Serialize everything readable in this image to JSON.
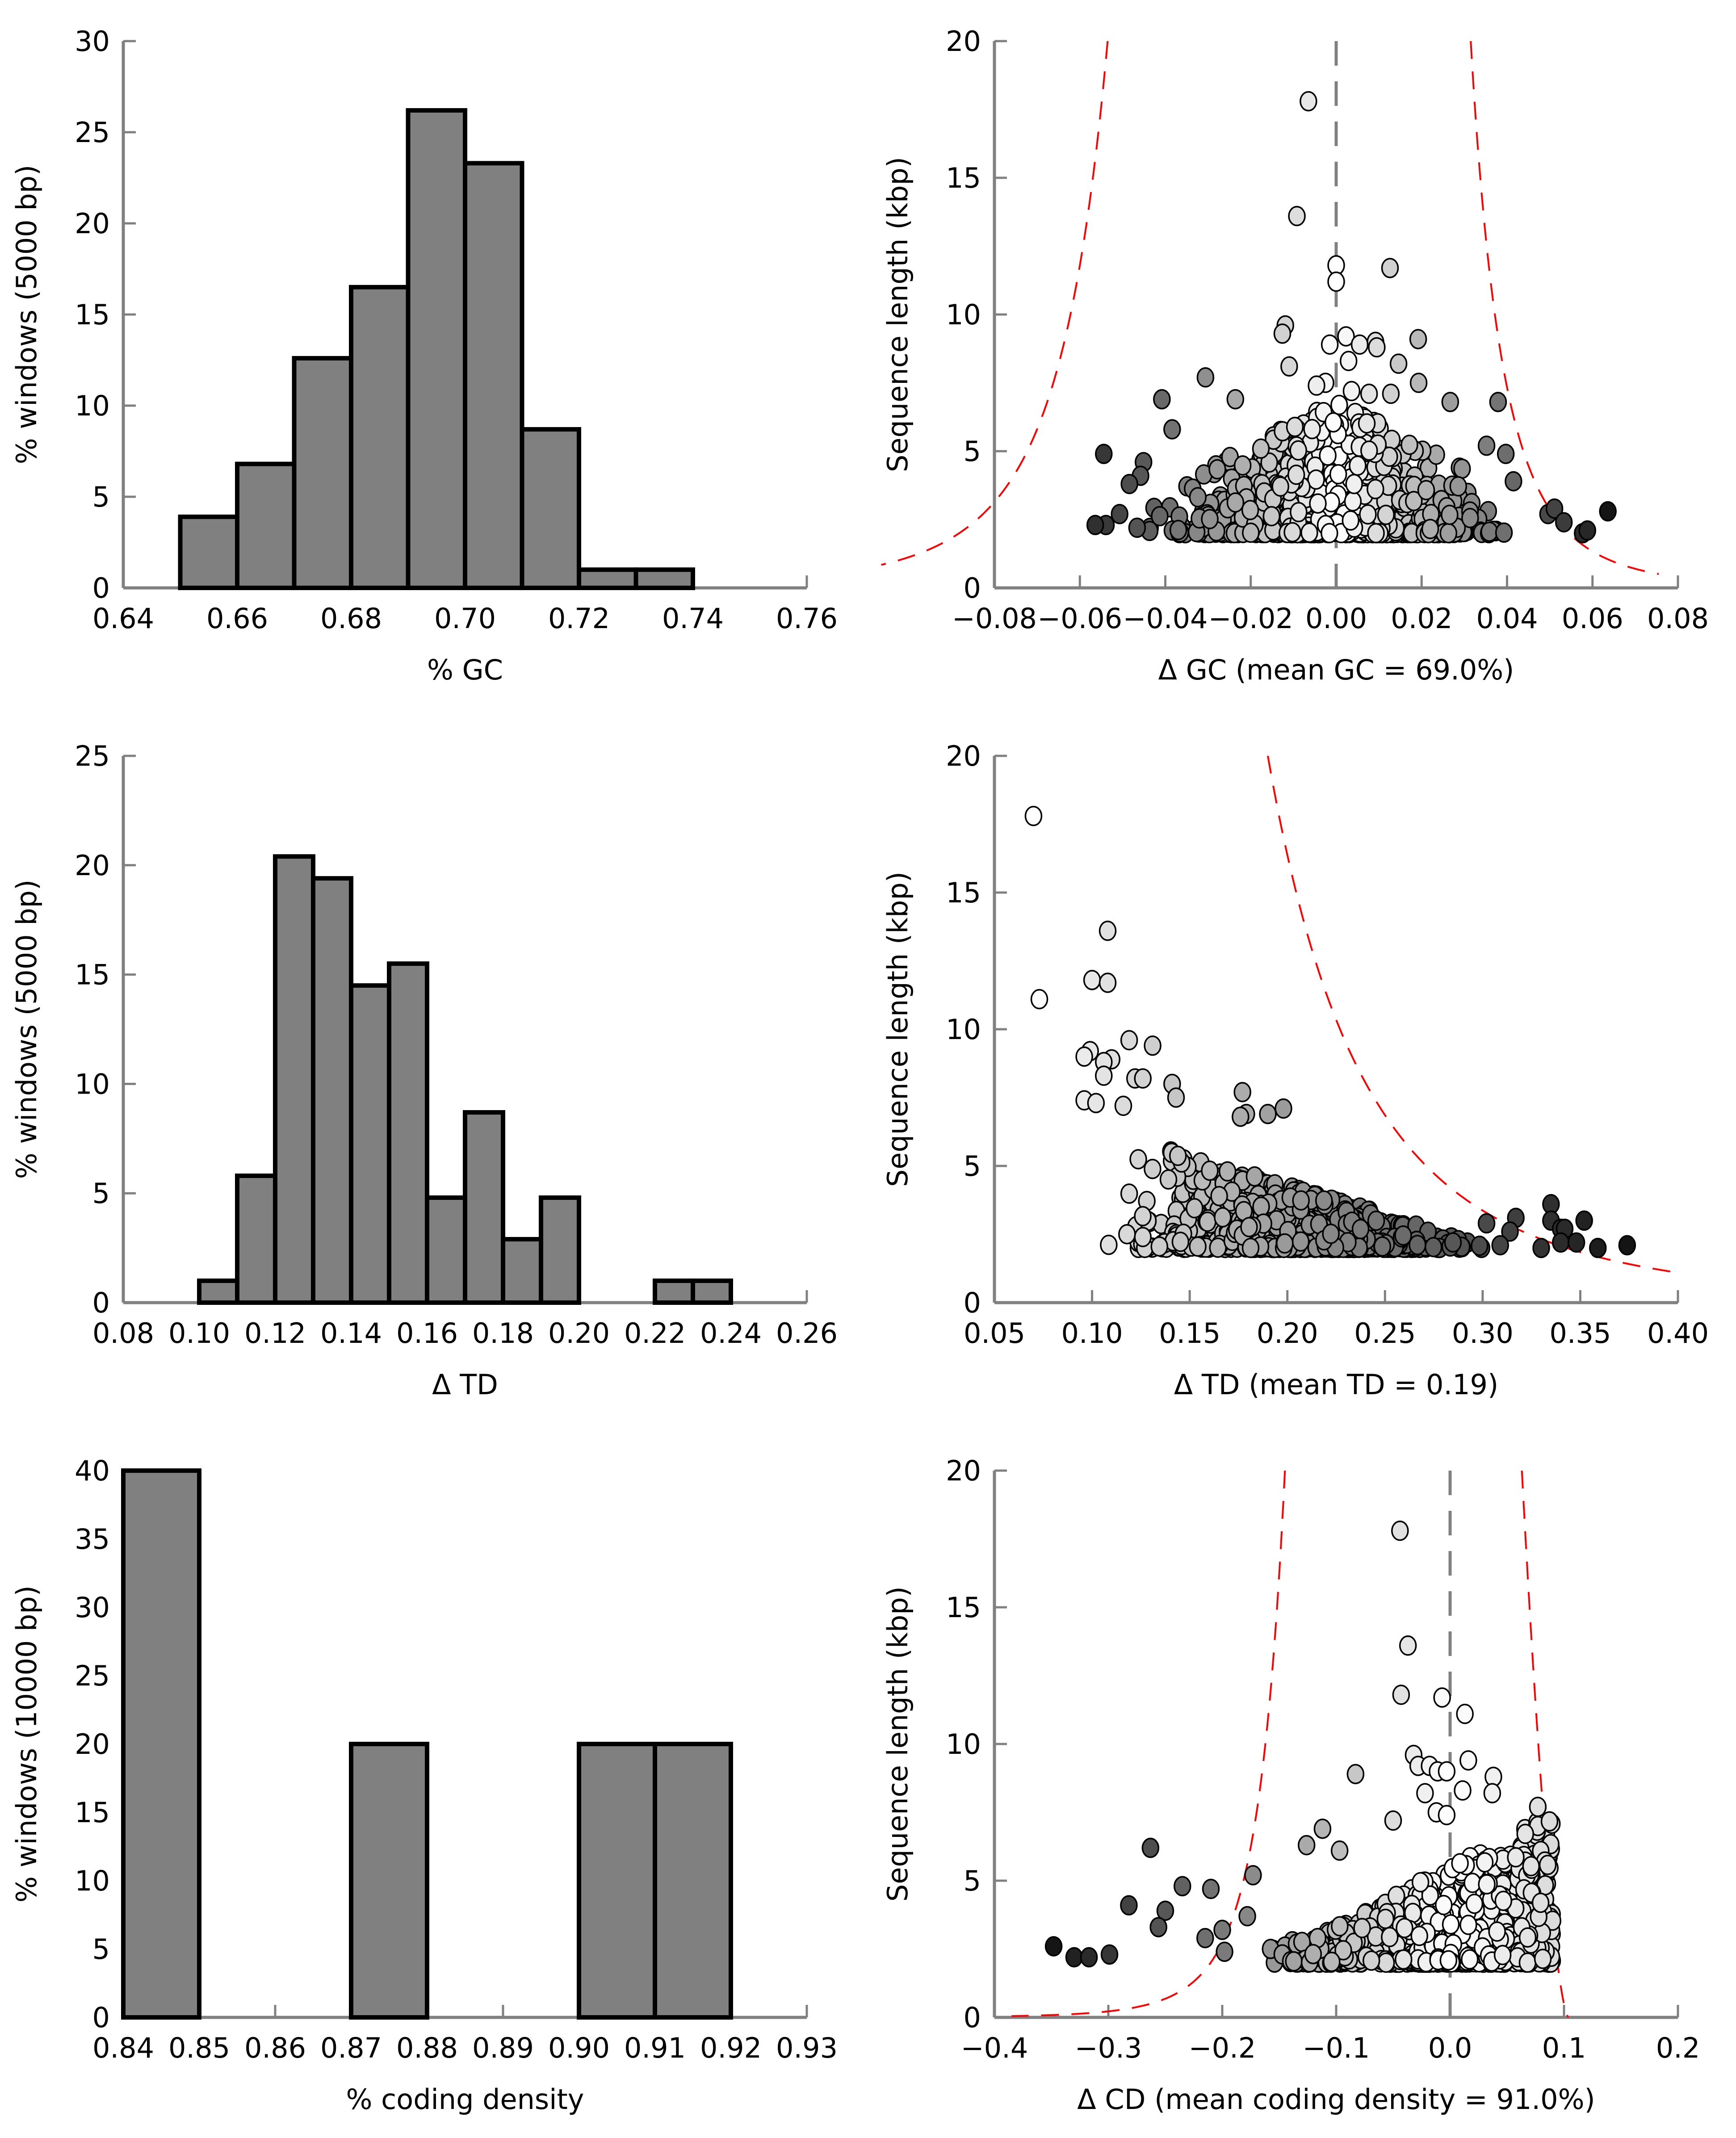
{
  "chart_data": [
    {
      "id": "gc-hist",
      "type": "bar",
      "xlabel": "% GC",
      "ylabel": "% windows (5000 bp)",
      "xlim": [
        0.64,
        0.76
      ],
      "ylim": [
        0,
        30
      ],
      "xticks": [
        "0.64",
        "0.66",
        "0.68",
        "0.70",
        "0.72",
        "0.74",
        "0.76"
      ],
      "yticks": [
        "0",
        "5",
        "10",
        "15",
        "20",
        "25",
        "30"
      ],
      "bin_width": 0.01,
      "bins": [
        {
          "start": 0.65,
          "value": 3.9
        },
        {
          "start": 0.66,
          "value": 6.8
        },
        {
          "start": 0.67,
          "value": 12.6
        },
        {
          "start": 0.68,
          "value": 16.5
        },
        {
          "start": 0.69,
          "value": 26.2
        },
        {
          "start": 0.7,
          "value": 23.3
        },
        {
          "start": 0.71,
          "value": 8.7
        },
        {
          "start": 0.72,
          "value": 1.0
        },
        {
          "start": 0.73,
          "value": 1.0
        }
      ],
      "bar_color": "#808080"
    },
    {
      "id": "gc-scatter",
      "type": "scatter",
      "xlabel": "Δ GC (mean GC = 69.0%)",
      "ylabel": "Sequence length (kbp)",
      "xlim": [
        -0.08,
        0.08
      ],
      "ylim": [
        0,
        20
      ],
      "xticks": [
        "−0.08",
        "−0.06",
        "−0.04",
        "−0.02",
        "0.00",
        "0.02",
        "0.04",
        "0.06",
        "0.08"
      ],
      "yticks": [
        "0",
        "5",
        "10",
        "15",
        "20"
      ],
      "center_line": 0.0,
      "outliers": [
        [
          -0.0065,
          17.8
        ],
        [
          -0.0092,
          13.6
        ],
        [
          0.0,
          11.8
        ],
        [
          0.0,
          11.2
        ],
        [
          0.0126,
          11.7
        ],
        [
          -0.0119,
          9.6
        ],
        [
          -0.0126,
          9.3
        ],
        [
          -0.011,
          8.1
        ],
        [
          -0.0015,
          8.9
        ],
        [
          0.0023,
          9.2
        ],
        [
          0.0055,
          8.9
        ],
        [
          0.0092,
          9.0
        ],
        [
          0.0095,
          8.8
        ],
        [
          0.0192,
          9.1
        ],
        [
          0.0029,
          8.3
        ],
        [
          0.0146,
          8.2
        ],
        [
          -0.0306,
          7.7
        ],
        [
          0.0193,
          7.5
        ],
        [
          -0.0408,
          6.9
        ],
        [
          -0.0236,
          6.9
        ],
        [
          0.0267,
          6.8
        ],
        [
          0.0379,
          6.8
        ],
        [
          -0.0025,
          7.5
        ],
        [
          -0.0046,
          7.4
        ],
        [
          0.0036,
          7.2
        ],
        [
          0.0077,
          7.1
        ],
        [
          0.0128,
          7.1
        ],
        [
          -0.0544,
          4.9
        ],
        [
          -0.0539,
          2.3
        ],
        [
          -0.0564,
          2.3
        ],
        [
          -0.0507,
          2.7
        ],
        [
          -0.0466,
          2.2
        ],
        [
          0.0496,
          2.7
        ],
        [
          0.0511,
          2.9
        ],
        [
          0.0533,
          2.4
        ],
        [
          0.0577,
          2.0
        ],
        [
          0.0588,
          2.1
        ],
        [
          0.0636,
          2.8
        ],
        [
          0.0397,
          4.9
        ],
        [
          0.0352,
          5.2
        ],
        [
          -0.0384,
          5.8
        ],
        [
          -0.0451,
          4.6
        ],
        [
          -0.0458,
          4.1
        ],
        [
          -0.0484,
          3.8
        ],
        [
          0.0415,
          3.9
        ]
      ],
      "dense_region": {
        "x": [
          -0.05,
          0.045
        ],
        "y": [
          2.0,
          6.5
        ],
        "count": 900
      },
      "threshold_curve": "dashed red, symmetric about 0"
    },
    {
      "id": "td-hist",
      "type": "bar",
      "xlabel": "Δ TD",
      "ylabel": "% windows (5000 bp)",
      "xlim": [
        0.08,
        0.26
      ],
      "ylim": [
        0,
        25
      ],
      "xticks": [
        "0.08",
        "0.10",
        "0.12",
        "0.14",
        "0.16",
        "0.18",
        "0.20",
        "0.22",
        "0.24",
        "0.26"
      ],
      "yticks": [
        "0",
        "5",
        "10",
        "15",
        "20",
        "25"
      ],
      "bin_width": 0.01,
      "bins": [
        {
          "start": 0.1,
          "value": 1.0
        },
        {
          "start": 0.11,
          "value": 5.8
        },
        {
          "start": 0.12,
          "value": 20.4
        },
        {
          "start": 0.13,
          "value": 19.4
        },
        {
          "start": 0.14,
          "value": 14.5
        },
        {
          "start": 0.15,
          "value": 15.5
        },
        {
          "start": 0.16,
          "value": 4.8
        },
        {
          "start": 0.17,
          "value": 8.7
        },
        {
          "start": 0.18,
          "value": 2.9
        },
        {
          "start": 0.19,
          "value": 4.8
        },
        {
          "start": 0.22,
          "value": 1.0
        },
        {
          "start": 0.23,
          "value": 1.0
        }
      ],
      "bar_color": "#808080"
    },
    {
      "id": "td-scatter",
      "type": "scatter",
      "xlabel": "Δ TD (mean TD = 0.19)",
      "ylabel": "Sequence length (kbp)",
      "xlim": [
        0.05,
        0.4
      ],
      "ylim": [
        0,
        20
      ],
      "xticks": [
        "0.05",
        "0.10",
        "0.15",
        "0.20",
        "0.25",
        "0.30",
        "0.35",
        "0.40"
      ],
      "yticks": [
        "0",
        "5",
        "10",
        "15",
        "20"
      ],
      "outliers": [
        [
          0.07,
          17.8
        ],
        [
          0.073,
          11.1
        ],
        [
          0.108,
          13.6
        ],
        [
          0.1,
          11.8
        ],
        [
          0.108,
          11.7
        ],
        [
          0.119,
          9.6
        ],
        [
          0.131,
          9.4
        ],
        [
          0.099,
          9.2
        ],
        [
          0.096,
          9.0
        ],
        [
          0.11,
          8.9
        ],
        [
          0.106,
          8.8
        ],
        [
          0.106,
          8.3
        ],
        [
          0.122,
          8.2
        ],
        [
          0.126,
          8.2
        ],
        [
          0.141,
          8.0
        ],
        [
          0.143,
          7.5
        ],
        [
          0.096,
          7.4
        ],
        [
          0.102,
          7.3
        ],
        [
          0.116,
          7.2
        ],
        [
          0.177,
          7.7
        ],
        [
          0.179,
          6.9
        ],
        [
          0.176,
          6.8
        ],
        [
          0.19,
          6.9
        ],
        [
          0.198,
          7.1
        ],
        [
          0.126,
          2.4
        ],
        [
          0.33,
          2.0
        ],
        [
          0.335,
          3.6
        ],
        [
          0.335,
          3.0
        ],
        [
          0.34,
          2.7
        ],
        [
          0.342,
          2.7
        ],
        [
          0.34,
          2.2
        ],
        [
          0.348,
          2.2
        ],
        [
          0.352,
          3.0
        ],
        [
          0.359,
          2.0
        ],
        [
          0.374,
          2.1
        ],
        [
          0.317,
          3.1
        ],
        [
          0.314,
          2.6
        ],
        [
          0.302,
          2.9
        ],
        [
          0.309,
          2.1
        ]
      ],
      "dense_region": {
        "x": [
          0.1,
          0.31
        ],
        "y": [
          2.0,
          6.5
        ],
        "count": 900
      },
      "threshold_curve": "dashed red, decreasing"
    },
    {
      "id": "cd-hist",
      "type": "bar",
      "xlabel": "% coding density",
      "ylabel": "% windows (10000 bp)",
      "xlim": [
        0.84,
        0.93
      ],
      "ylim": [
        0,
        40
      ],
      "xticks": [
        "0.84",
        "0.85",
        "0.86",
        "0.87",
        "0.88",
        "0.89",
        "0.90",
        "0.91",
        "0.92",
        "0.93"
      ],
      "yticks": [
        "0",
        "5",
        "10",
        "15",
        "20",
        "25",
        "30",
        "35",
        "40"
      ],
      "bin_width": 0.01,
      "bins": [
        {
          "start": 0.84,
          "value": 40
        },
        {
          "start": 0.87,
          "value": 20
        },
        {
          "start": 0.9,
          "value": 20
        },
        {
          "start": 0.91,
          "value": 20
        }
      ],
      "bar_color": "#808080"
    },
    {
      "id": "cd-scatter",
      "type": "scatter",
      "xlabel": "Δ CD (mean coding density = 91.0%)",
      "ylabel": "Sequence length (kbp)",
      "xlim": [
        -0.4,
        0.2
      ],
      "ylim": [
        0,
        20
      ],
      "xticks": [
        "−0.4",
        "−0.3",
        "−0.2",
        "−0.1",
        "0.0",
        "0.1",
        "0.2"
      ],
      "yticks": [
        "0",
        "5",
        "10",
        "15",
        "20"
      ],
      "center_line": 0.0,
      "outliers": [
        [
          -0.044,
          17.8
        ],
        [
          -0.037,
          13.6
        ],
        [
          -0.043,
          11.8
        ],
        [
          -0.007,
          11.7
        ],
        [
          0.013,
          11.1
        ],
        [
          -0.032,
          9.6
        ],
        [
          0.016,
          9.4
        ],
        [
          -0.028,
          9.2
        ],
        [
          -0.018,
          9.2
        ],
        [
          -0.011,
          9.0
        ],
        [
          -0.003,
          9.0
        ],
        [
          -0.083,
          8.9
        ],
        [
          0.038,
          8.8
        ],
        [
          0.011,
          8.3
        ],
        [
          0.037,
          8.2
        ],
        [
          -0.022,
          8.2
        ],
        [
          0.077,
          7.7
        ],
        [
          -0.05,
          7.2
        ],
        [
          -0.012,
          7.5
        ],
        [
          -0.003,
          7.4
        ],
        [
          -0.112,
          6.9
        ],
        [
          -0.126,
          6.3
        ],
        [
          -0.097,
          6.1
        ],
        [
          -0.263,
          6.2
        ],
        [
          -0.235,
          4.8
        ],
        [
          -0.282,
          4.1
        ],
        [
          -0.25,
          3.9
        ],
        [
          -0.256,
          3.3
        ],
        [
          -0.348,
          2.6
        ],
        [
          -0.33,
          2.2
        ],
        [
          -0.317,
          2.2
        ],
        [
          -0.299,
          2.3
        ],
        [
          -0.21,
          4.7
        ],
        [
          -0.173,
          5.2
        ],
        [
          -0.2,
          3.2
        ],
        [
          -0.178,
          3.7
        ],
        [
          -0.215,
          2.9
        ],
        [
          -0.198,
          2.4
        ]
      ],
      "dense_region": {
        "x": [
          -0.16,
          0.09
        ],
        "y": [
          2.0,
          7.0
        ],
        "count": 900
      },
      "threshold_curve": "dashed red, asymmetric"
    }
  ]
}
